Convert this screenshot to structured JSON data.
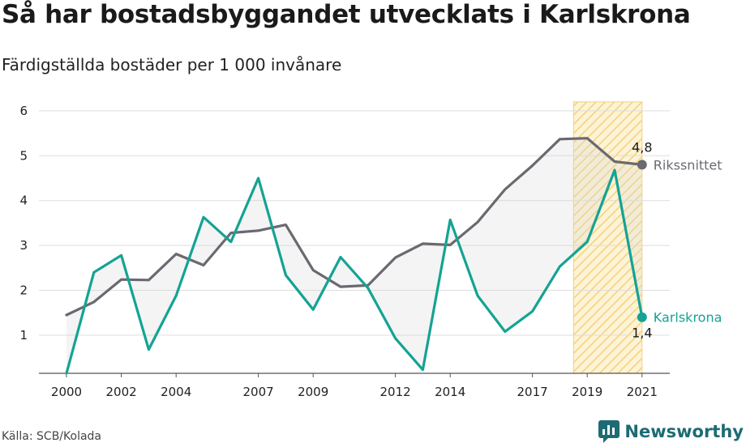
{
  "title": "Så har bostadsbyggandet utvecklats i Karlskrona",
  "subtitle": "Färdigställda bostäder per 1 000 invånare",
  "source": "Källa: SCB/Kolada",
  "brand": "Newsworthy",
  "colors": {
    "riks": "#6b6970",
    "karlskrona": "#14a394",
    "highlight": "#f5c542",
    "grid": "#dddddd",
    "brand": "#1d6b73"
  },
  "chart_data": {
    "type": "line",
    "x": [
      2000,
      2001,
      2002,
      2003,
      2004,
      2005,
      2006,
      2007,
      2008,
      2009,
      2010,
      2011,
      2012,
      2013,
      2014,
      2015,
      2016,
      2017,
      2018,
      2019,
      2020,
      2021
    ],
    "x_tick_labels": [
      "2000",
      "2002",
      "2004",
      "2007",
      "2009",
      "2012",
      "2014",
      "2017",
      "2019",
      "2021"
    ],
    "x_tick_values": [
      2000,
      2002,
      2004,
      2007,
      2009,
      2012,
      2014,
      2017,
      2019,
      2021
    ],
    "y_tick_labels": [
      "1",
      "2",
      "3",
      "4",
      "5",
      "6"
    ],
    "ylim": [
      0.15,
      6.2
    ],
    "highlight_range": [
      2018.5,
      2021
    ],
    "series": [
      {
        "name": "Rikssnittet",
        "color": "#6b6970",
        "values": [
          1.45,
          1.74,
          2.24,
          2.23,
          2.81,
          2.56,
          3.28,
          3.33,
          3.46,
          2.45,
          2.08,
          2.11,
          2.73,
          3.04,
          3.01,
          3.52,
          4.25,
          4.78,
          5.37,
          5.39,
          4.87,
          4.8
        ],
        "end_label": "4,8"
      },
      {
        "name": "Karlskrona",
        "color": "#14a394",
        "values": [
          0.15,
          2.4,
          2.78,
          0.68,
          1.88,
          3.63,
          3.08,
          4.5,
          2.34,
          1.57,
          2.74,
          2.05,
          0.93,
          0.23,
          3.57,
          1.88,
          1.08,
          1.53,
          2.53,
          3.08,
          4.68,
          1.4
        ],
        "end_label": "1,4"
      }
    ],
    "xlabel": "",
    "ylabel": "",
    "grid": true,
    "legend": "end-of-line labels"
  }
}
